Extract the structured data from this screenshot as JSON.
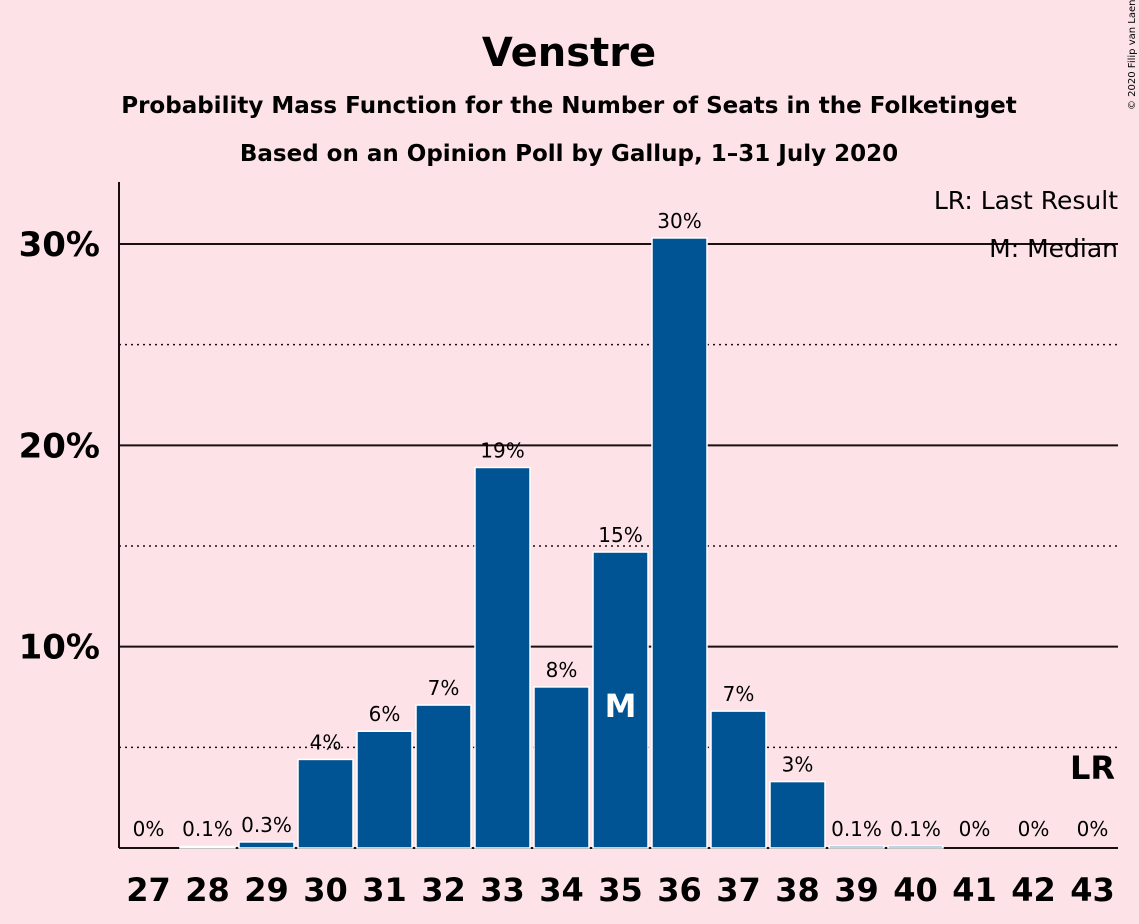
{
  "copyright": "© 2020 Filip van Laenen",
  "colors": {
    "bar": "#005494",
    "background": "#fde3e8",
    "text": "#1a0f10"
  },
  "legend": {
    "last_result": "LR: Last Result",
    "median": "M: Median"
  },
  "chart_data": {
    "type": "bar",
    "title": "Venstre",
    "subtitle": "Probability Mass Function for the Number of Seats in the Folketinget",
    "subtitle2": "Based on an Opinion Poll by Gallup, 1–31 July 2020",
    "xlabel": "",
    "ylabel": "",
    "categories": [
      "27",
      "28",
      "29",
      "30",
      "31",
      "32",
      "33",
      "34",
      "35",
      "36",
      "37",
      "38",
      "39",
      "40",
      "41",
      "42",
      "43"
    ],
    "values": [
      0,
      0.05,
      0.3,
      4.4,
      5.8,
      7.1,
      18.9,
      8.0,
      14.7,
      30.3,
      6.8,
      3.3,
      0.1,
      0.1,
      0,
      0,
      0
    ],
    "data_labels": [
      "0%",
      "0.1%",
      "0.3%",
      "4%",
      "6%",
      "7%",
      "19%",
      "8%",
      "15%",
      "30%",
      "7%",
      "3%",
      "0.1%",
      "0.1%",
      "0%",
      "0%",
      "0%"
    ],
    "ylim": [
      0,
      33
    ],
    "yticks": [
      {
        "value": 10,
        "label": "10%"
      },
      {
        "value": 20,
        "label": "20%"
      },
      {
        "value": 30,
        "label": "30%"
      }
    ],
    "minor_gridlines": [
      5,
      15,
      25
    ],
    "median": {
      "seats": "35",
      "label": "M"
    },
    "last_result": {
      "seats": "43",
      "label": "LR"
    },
    "grid": true,
    "legend_position": "top-right"
  }
}
